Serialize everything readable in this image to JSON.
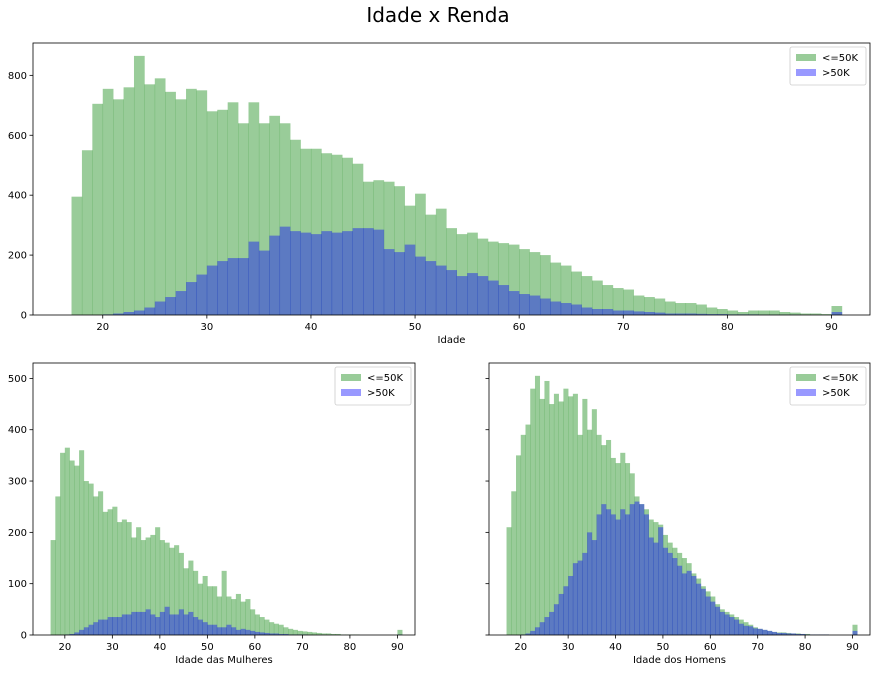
{
  "title": "Idade x Renda",
  "colors": {
    "low": "#008000",
    "high": "#0000ff",
    "axis": "#000000"
  },
  "chart_data": [
    {
      "id": "top",
      "type": "bar",
      "title": "",
      "xlabel": "Idade",
      "ylabel": "",
      "xlim": [
        13.3,
        93.7
      ],
      "ylim": [
        0,
        908
      ],
      "xticks": [
        20,
        30,
        40,
        50,
        60,
        70,
        80,
        90
      ],
      "yticks": [
        0,
        200,
        400,
        600,
        800
      ],
      "legend": {
        "position": "top-right",
        "entries": [
          "<=50K",
          ">50K"
        ]
      },
      "bin_start": 17,
      "bin_width": 1,
      "series": [
        {
          "name": "<=50K",
          "color": "#008000",
          "alpha": 0.4,
          "values": [
            395,
            550,
            705,
            755,
            720,
            760,
            865,
            770,
            790,
            745,
            720,
            755,
            750,
            680,
            685,
            710,
            640,
            710,
            640,
            665,
            640,
            585,
            555,
            555,
            540,
            535,
            525,
            505,
            445,
            450,
            445,
            430,
            365,
            405,
            335,
            355,
            290,
            270,
            275,
            255,
            245,
            240,
            235,
            220,
            210,
            200,
            175,
            165,
            145,
            130,
            115,
            100,
            90,
            85,
            65,
            60,
            55,
            45,
            40,
            40,
            35,
            25,
            20,
            15,
            10,
            15,
            15,
            15,
            10,
            8,
            5,
            5,
            3,
            30
          ],
          "valueLabels": [
            "395",
            "550",
            "705",
            "755",
            "720",
            "760",
            "865",
            "770",
            "790",
            "745",
            "720",
            "755",
            "750",
            "680",
            "685",
            "710",
            "640",
            "710",
            "640",
            "665",
            "640",
            "585",
            "555",
            "555",
            "540",
            "535",
            "525",
            "505",
            "445",
            "450",
            "445",
            "430",
            "365",
            "405",
            "335",
            "355",
            "290",
            "270",
            "275",
            "255",
            "245",
            "240",
            "235",
            "220",
            "210",
            "200",
            "175",
            "165",
            "145",
            "130",
            "115",
            "100",
            "90",
            "85",
            "65",
            "60",
            "55",
            "45",
            "40",
            "40",
            "35",
            "25",
            "20",
            "15",
            "10",
            "15",
            "15",
            "15",
            "10",
            "8",
            "5",
            "5",
            "3",
            "30"
          ]
        },
        {
          "name": ">50K",
          "color": "#0000ff",
          "alpha": 0.4,
          "values": [
            0,
            0,
            0,
            2,
            5,
            10,
            15,
            25,
            45,
            60,
            80,
            110,
            135,
            165,
            180,
            190,
            190,
            245,
            215,
            265,
            295,
            280,
            275,
            270,
            280,
            275,
            280,
            290,
            290,
            285,
            220,
            210,
            235,
            195,
            180,
            165,
            150,
            130,
            140,
            130,
            115,
            100,
            80,
            70,
            65,
            55,
            45,
            40,
            35,
            25,
            20,
            20,
            15,
            15,
            12,
            10,
            8,
            5,
            5,
            5,
            4,
            3,
            3,
            2,
            2,
            2,
            1,
            1,
            1,
            1,
            0,
            0,
            0,
            10
          ],
          "valueLabels": [
            "0",
            "0",
            "0",
            "2",
            "5",
            "10",
            "15",
            "25",
            "45",
            "60",
            "80",
            "110",
            "135",
            "165",
            "180",
            "190",
            "190",
            "245",
            "215",
            "265",
            "295",
            "280",
            "275",
            "270",
            "280",
            "275",
            "280",
            "290",
            "290",
            "285",
            "220",
            "210",
            "235",
            "195",
            "180",
            "165",
            "150",
            "130",
            "140",
            "130",
            "115",
            "100",
            "80",
            "70",
            "65",
            "55",
            "45",
            "40",
            "35",
            "25",
            "20",
            "20",
            "15",
            "15",
            "12",
            "10",
            "8",
            "5",
            "5",
            "5",
            "4",
            "3",
            "3",
            "2",
            "2",
            "2",
            "1",
            "1",
            "1",
            "1",
            "0",
            "0",
            "0",
            "10"
          ]
        }
      ]
    },
    {
      "id": "women",
      "type": "bar",
      "title": "",
      "xlabel": "Idade das Mulheres",
      "ylabel": "",
      "xlim": [
        13.3,
        93.7
      ],
      "ylim": [
        0,
        530
      ],
      "xticks": [
        20,
        30,
        40,
        50,
        60,
        70,
        80,
        90
      ],
      "yticks": [
        0,
        100,
        200,
        300,
        400,
        500
      ],
      "legend": {
        "position": "top-right",
        "entries": [
          "<=50K",
          ">50K"
        ]
      },
      "bin_start": 17,
      "bin_width": 1,
      "series": [
        {
          "name": "<=50K",
          "color": "#008000",
          "alpha": 0.4,
          "values": [
            185,
            270,
            355,
            365,
            340,
            330,
            360,
            300,
            295,
            270,
            280,
            240,
            245,
            250,
            220,
            225,
            220,
            190,
            210,
            185,
            190,
            195,
            210,
            185,
            180,
            170,
            175,
            160,
            130,
            145,
            125,
            100,
            115,
            95,
            95,
            75,
            125,
            75,
            70,
            80,
            65,
            70,
            50,
            40,
            35,
            30,
            25,
            22,
            20,
            15,
            12,
            10,
            8,
            7,
            6,
            5,
            4,
            3,
            3,
            2,
            2,
            1,
            1,
            1,
            1,
            0,
            0,
            0,
            0,
            0,
            0,
            0,
            0,
            10
          ],
          "valueLabels": [
            "185",
            "270",
            "355",
            "365",
            "340",
            "330",
            "360",
            "300",
            "295",
            "270",
            "280",
            "240",
            "245",
            "250",
            "220",
            "225",
            "220",
            "190",
            "210",
            "185",
            "190",
            "195",
            "210",
            "185",
            "180",
            "170",
            "175",
            "160",
            "130",
            "145",
            "125",
            "100",
            "115",
            "95",
            "95",
            "75",
            "125",
            "75",
            "70",
            "80",
            "65",
            "70",
            "50",
            "40",
            "35",
            "30",
            "25",
            "22",
            "20",
            "15",
            "12",
            "10",
            "8",
            "7",
            "6",
            "5",
            "4",
            "3",
            "3",
            "2",
            "2",
            "1",
            "1",
            "1",
            "1",
            "0",
            "0",
            "0",
            "0",
            "0",
            "0",
            "0",
            "0",
            "10"
          ]
        },
        {
          "name": ">50K",
          "color": "#0000ff",
          "alpha": 0.4,
          "values": [
            0,
            0,
            0,
            1,
            2,
            5,
            10,
            15,
            20,
            25,
            30,
            30,
            35,
            35,
            35,
            40,
            40,
            45,
            45,
            45,
            50,
            40,
            35,
            45,
            55,
            40,
            40,
            50,
            40,
            45,
            35,
            30,
            25,
            20,
            20,
            15,
            15,
            20,
            15,
            10,
            12,
            10,
            8,
            6,
            5,
            4,
            3,
            3,
            2,
            2,
            1,
            1,
            1,
            1,
            0,
            0,
            0,
            0,
            0,
            0,
            0,
            0,
            0,
            0,
            0,
            0,
            0,
            0,
            0,
            0,
            0,
            0,
            0,
            1
          ],
          "valueLabels": [
            "0",
            "0",
            "0",
            "1",
            "2",
            "5",
            "10",
            "15",
            "20",
            "25",
            "30",
            "30",
            "35",
            "35",
            "35",
            "40",
            "40",
            "45",
            "45",
            "45",
            "50",
            "40",
            "35",
            "45",
            "55",
            "40",
            "40",
            "50",
            "40",
            "45",
            "35",
            "30",
            "25",
            "20",
            "20",
            "15",
            "15",
            "20",
            "15",
            "10",
            "12",
            "10",
            "8",
            "6",
            "5",
            "4",
            "3",
            "3",
            "2",
            "2",
            "1",
            "1",
            "1",
            "1",
            "0",
            "0",
            "0",
            "0",
            "0",
            "0",
            "0",
            "0",
            "0",
            "0",
            "0",
            "0",
            "0",
            "0",
            "0",
            "0",
            "0",
            "0",
            "0",
            "1"
          ]
        }
      ]
    },
    {
      "id": "men",
      "type": "bar",
      "title": "",
      "xlabel": "Idade dos Homens",
      "ylabel": "",
      "xlim": [
        13.3,
        93.7
      ],
      "ylim": [
        0,
        530
      ],
      "xticks": [
        20,
        30,
        40,
        50,
        60,
        70,
        80,
        90
      ],
      "yticks": [
        0,
        100,
        200,
        300,
        400,
        500
      ],
      "yticklabels_visible": false,
      "legend": {
        "position": "top-right",
        "entries": [
          "<=50K",
          ">50K"
        ]
      },
      "bin_start": 17,
      "bin_width": 1,
      "series": [
        {
          "name": "<=50K",
          "color": "#008000",
          "alpha": 0.4,
          "values": [
            210,
            280,
            350,
            390,
            410,
            480,
            505,
            460,
            495,
            450,
            470,
            455,
            480,
            465,
            470,
            390,
            460,
            400,
            440,
            390,
            370,
            380,
            345,
            335,
            355,
            335,
            315,
            270,
            255,
            245,
            225,
            220,
            215,
            195,
            180,
            170,
            160,
            150,
            140,
            120,
            110,
            95,
            85,
            75,
            60,
            50,
            45,
            40,
            35,
            30,
            25,
            20,
            15,
            12,
            10,
            8,
            6,
            5,
            5,
            4,
            3,
            3,
            2,
            2,
            1,
            1,
            1,
            1,
            0,
            0,
            0,
            0,
            0,
            20
          ],
          "valueLabels": [
            "210",
            "280",
            "350",
            "390",
            "410",
            "480",
            "505",
            "460",
            "495",
            "450",
            "470",
            "455",
            "480",
            "465",
            "470",
            "390",
            "460",
            "400",
            "440",
            "390",
            "370",
            "380",
            "345",
            "335",
            "355",
            "335",
            "315",
            "270",
            "255",
            "245",
            "225",
            "220",
            "215",
            "195",
            "180",
            "170",
            "160",
            "150",
            "140",
            "120",
            "110",
            "95",
            "85",
            "75",
            "60",
            "50",
            "45",
            "40",
            "35",
            "30",
            "25",
            "20",
            "15",
            "12",
            "10",
            "8",
            "6",
            "5",
            "5",
            "4",
            "3",
            "3",
            "2",
            "2",
            "1",
            "1",
            "1",
            "1",
            "0",
            "0",
            "0",
            "0",
            "0",
            "20"
          ]
        },
        {
          "name": ">50K",
          "color": "#0000ff",
          "alpha": 0.4,
          "values": [
            0,
            0,
            0,
            1,
            3,
            8,
            15,
            25,
            35,
            45,
            60,
            80,
            95,
            115,
            140,
            145,
            160,
            200,
            185,
            235,
            255,
            245,
            235,
            225,
            245,
            235,
            255,
            260,
            255,
            235,
            190,
            180,
            210,
            170,
            160,
            150,
            135,
            120,
            125,
            115,
            100,
            90,
            75,
            65,
            55,
            45,
            40,
            35,
            30,
            22,
            18,
            17,
            13,
            12,
            10,
            8,
            6,
            4,
            4,
            3,
            3,
            2,
            2,
            1,
            1,
            1,
            1,
            1,
            0,
            0,
            0,
            0,
            0,
            8
          ],
          "valueLabels": [
            "0",
            "0",
            "0",
            "1",
            "3",
            "8",
            "15",
            "25",
            "35",
            "45",
            "60",
            "80",
            "95",
            "115",
            "140",
            "145",
            "160",
            "200",
            "185",
            "235",
            "255",
            "245",
            "235",
            "225",
            "245",
            "235",
            "255",
            "260",
            "255",
            "235",
            "190",
            "180",
            "210",
            "170",
            "160",
            "150",
            "135",
            "120",
            "125",
            "115",
            "100",
            "90",
            "75",
            "65",
            "55",
            "45",
            "40",
            "35",
            "30",
            "22",
            "18",
            "17",
            "13",
            "12",
            "10",
            "8",
            "6",
            "4",
            "4",
            "3",
            "3",
            "2",
            "2",
            "1",
            "1",
            "1",
            "1",
            "1",
            "0",
            "0",
            "0",
            "0",
            "0",
            "8"
          ]
        }
      ]
    }
  ]
}
